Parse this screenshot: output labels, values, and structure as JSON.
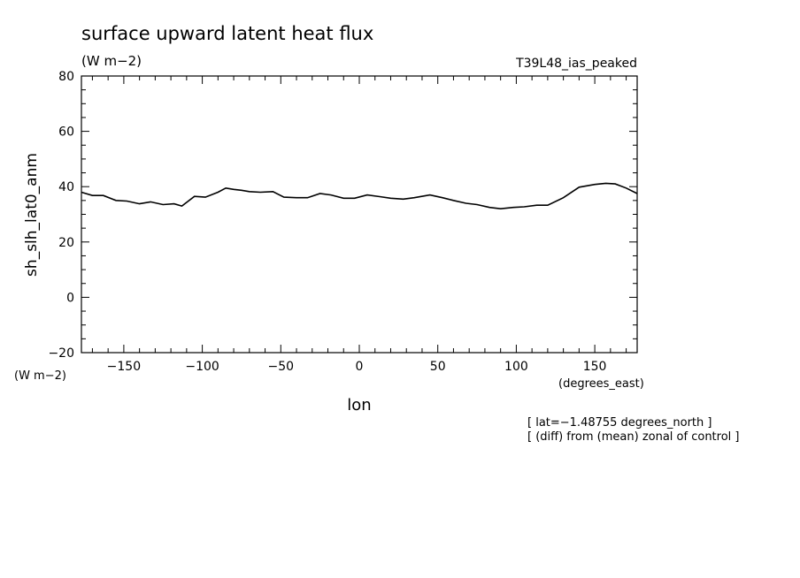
{
  "chart_data": {
    "type": "line",
    "title": "surface upward latent heat flux",
    "units": "(W m−2)",
    "experiment": "T39L48_ias_peaked",
    "ylabel": "sh_slh_lat0_anm",
    "yunits": "(W m−2)",
    "xlabel": "lon",
    "xunits": "(degrees_east)",
    "notes": [
      "[ lat=−1.48755 degrees_north ]",
      "[ (diff) from (mean) zonal of control ]"
    ],
    "xlim": [
      -177,
      177
    ],
    "ylim": [
      -20,
      80
    ],
    "xticks": [
      -150,
      -100,
      -50,
      0,
      50,
      100,
      150
    ],
    "xtick_labels": [
      "−150",
      "−100",
      "−50",
      "0",
      "50",
      "100",
      "150"
    ],
    "yticks": [
      -20,
      0,
      20,
      40,
      60,
      80
    ],
    "ytick_labels": [
      "−20",
      "0",
      "20",
      "40",
      "60",
      "80"
    ],
    "series": [
      {
        "x": [
          -177,
          -170,
          -163,
          -155,
          -148,
          -140,
          -133,
          -125,
          -118,
          -113,
          -105,
          -98,
          -90,
          -85,
          -80,
          -75,
          -70,
          -63,
          -55,
          -48,
          -40,
          -33,
          -25,
          -18,
          -10,
          -3,
          5,
          13,
          20,
          28,
          35,
          45,
          53,
          60,
          68,
          75,
          83,
          90,
          98,
          105,
          113,
          120,
          130,
          140,
          150,
          157,
          163,
          170,
          177
        ],
        "y": [
          38,
          36.8,
          36.8,
          35,
          34.8,
          33.8,
          34.5,
          33.5,
          33.8,
          33,
          36.5,
          36.2,
          38,
          39.5,
          39,
          38.7,
          38.2,
          38,
          38.2,
          36.2,
          36,
          36,
          37.5,
          37,
          35.8,
          35.8,
          37,
          36.4,
          35.8,
          35.5,
          36,
          37,
          36,
          35,
          34,
          33.5,
          32.5,
          32,
          32.5,
          32.7,
          33.3,
          33.3,
          36,
          39.8,
          40.8,
          41.2,
          41,
          39.5,
          37.5
        ]
      }
    ]
  }
}
